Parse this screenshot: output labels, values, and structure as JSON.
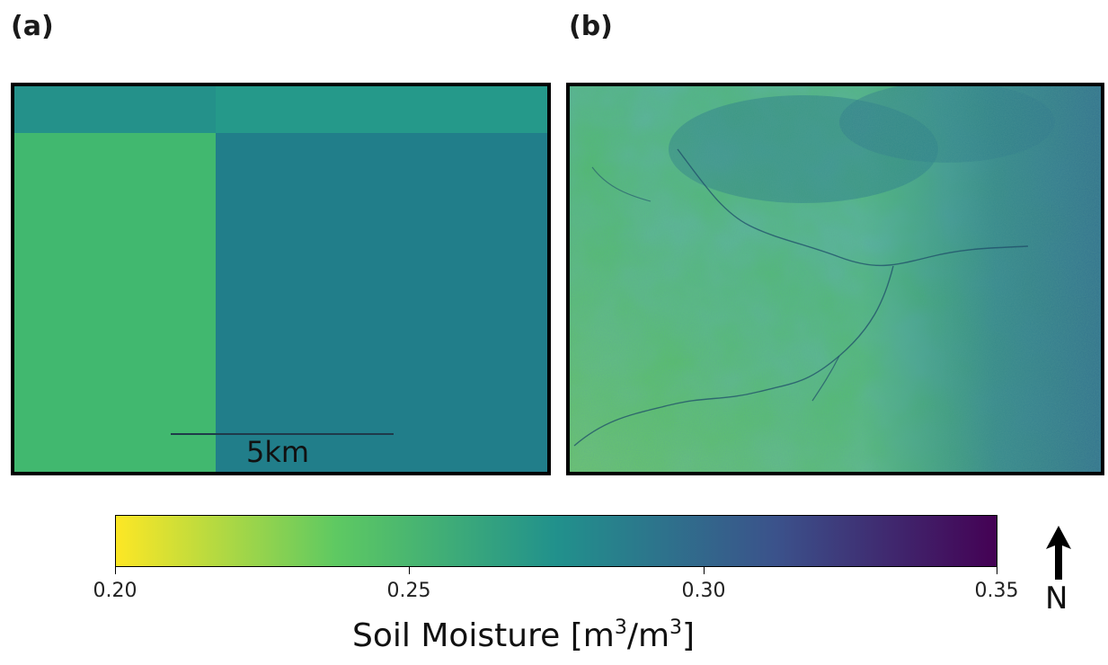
{
  "panels": {
    "a": {
      "label": "(a)",
      "scale_bar_text": "5km"
    },
    "b": {
      "label": "(b)"
    }
  },
  "colorbar": {
    "ticks": [
      "0.20",
      "0.25",
      "0.30",
      "0.35"
    ],
    "title_main": "Soil Moisture [m",
    "title_sup1": "3",
    "title_mid": "/m",
    "title_sup2": "3",
    "title_end": "]",
    "colors": [
      "#fde725",
      "#5ec962",
      "#21918c",
      "#3b528b",
      "#440154"
    ]
  },
  "north_arrow": {
    "label": "N"
  }
}
